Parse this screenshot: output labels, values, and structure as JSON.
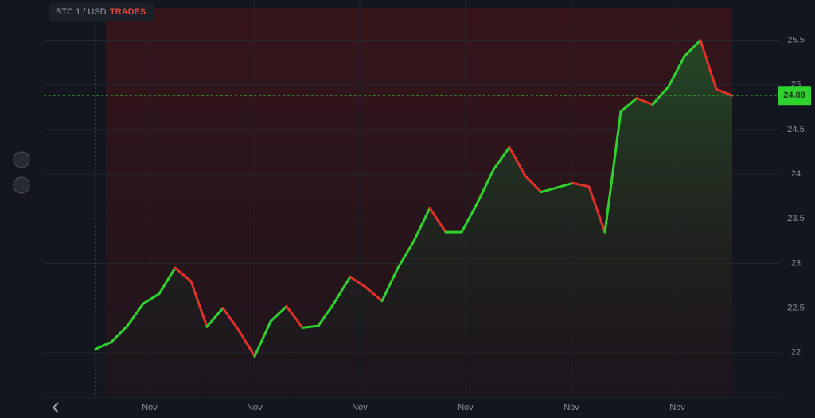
{
  "chart_data": {
    "type": "line",
    "symbol": "BTC 1 / USD",
    "indicator": "TRADES",
    "categories": [
      null,
      null,
      null,
      null,
      null,
      null,
      null,
      null,
      null,
      null,
      null,
      null,
      null,
      null,
      null,
      null,
      null,
      null,
      null,
      null,
      null,
      null,
      null,
      null,
      null,
      null,
      null,
      null,
      null,
      null,
      null,
      null,
      null,
      null,
      null,
      null,
      null,
      null,
      null,
      null,
      null
    ],
    "values": [
      22.04,
      22.12,
      22.3,
      22.55,
      22.66,
      22.95,
      22.8,
      22.29,
      22.5,
      22.25,
      21.96,
      22.35,
      22.52,
      22.28,
      22.3,
      22.56,
      22.85,
      22.73,
      22.58,
      22.95,
      23.25,
      23.62,
      23.35,
      23.35,
      23.68,
      24.05,
      24.3,
      23.98,
      23.8,
      23.85,
      23.9,
      23.86,
      23.35,
      24.7,
      24.85,
      24.78,
      24.98,
      25.32,
      25.5,
      24.95,
      24.88
    ],
    "up_color": "#2fd12f",
    "down_color": "#e0302a",
    "current_price": 24.88,
    "ylim": [
      21.5,
      25.95
    ],
    "yticks": [
      22.0,
      22.5,
      23.0,
      23.5,
      24.0,
      24.5,
      25.0,
      25.5
    ],
    "xticks": [
      {
        "value": 3.4,
        "label": "Nov"
      },
      {
        "value": 10,
        "label": "Nov"
      },
      {
        "value": 16.6,
        "label": "Nov"
      },
      {
        "value": 23.25,
        "label": "Nov"
      },
      {
        "value": 29.9,
        "label": "Nov"
      },
      {
        "value": 36.55,
        "label": "Nov"
      }
    ],
    "grid": true
  }
}
